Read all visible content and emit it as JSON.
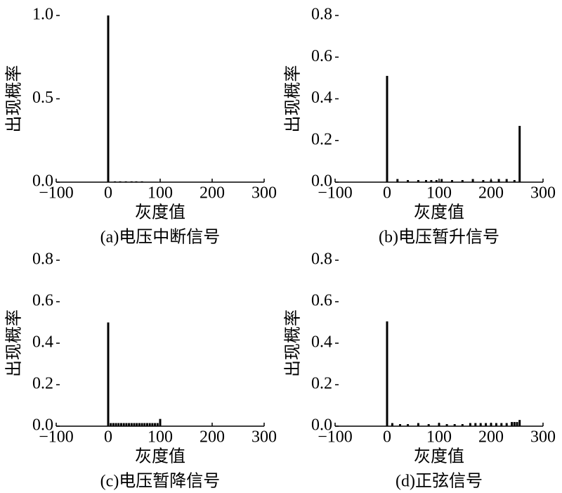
{
  "chart_data": [
    {
      "type": "bar",
      "xlabel": "灰度值",
      "ylabel": "出现概率",
      "caption": "(a)电压中断信号",
      "color": "#000000",
      "x": [
        0,
        13,
        23,
        34,
        45,
        54,
        65
      ],
      "values": [
        1.0,
        0.005,
        0.005,
        0.005,
        0.005,
        0.005,
        0.005
      ],
      "xlim": [
        -100,
        300
      ],
      "ylim": [
        0,
        1.0
      ],
      "xticks": [
        {
          "value": -100,
          "label": "−100"
        },
        0,
        100,
        200,
        300
      ],
      "yticks": [
        {
          "value": 0,
          "label": "0.0"
        },
        0.5,
        {
          "value": 1,
          "label": "1.0"
        }
      ]
    },
    {
      "type": "bar",
      "xlabel": "灰度值",
      "ylabel": "出现概率",
      "caption": "(b)电压暂升信号",
      "color": "#000000",
      "x": [
        0,
        20,
        40,
        60,
        75,
        85,
        95,
        105,
        125,
        145,
        165,
        185,
        200,
        215,
        230,
        245,
        255
      ],
      "values": [
        0.51,
        0.015,
        0.01,
        0.01,
        0.01,
        0.01,
        0.01,
        0.015,
        0.01,
        0.01,
        0.015,
        0.01,
        0.01,
        0.015,
        0.015,
        0.01,
        0.27
      ],
      "xlim": [
        -100,
        300
      ],
      "ylim": [
        0,
        0.8
      ],
      "xticks": [
        {
          "value": -100,
          "label": "−100"
        },
        0,
        100,
        200,
        300
      ],
      "yticks": [
        {
          "value": 0,
          "label": "0.0"
        },
        0.2,
        0.4,
        0.6,
        0.8
      ]
    },
    {
      "type": "bar",
      "xlabel": "灰度值",
      "ylabel": "出现概率",
      "caption": "(c)电压暂降信号",
      "color": "#000000",
      "x": [
        0,
        5,
        10,
        15,
        20,
        25,
        30,
        35,
        40,
        45,
        50,
        55,
        60,
        65,
        70,
        75,
        80,
        85,
        90,
        95,
        100
      ],
      "values": [
        0.5,
        0.015,
        0.015,
        0.015,
        0.015,
        0.015,
        0.015,
        0.015,
        0.015,
        0.015,
        0.015,
        0.015,
        0.015,
        0.015,
        0.015,
        0.015,
        0.015,
        0.015,
        0.015,
        0.015,
        0.035
      ],
      "xlim": [
        -100,
        300
      ],
      "ylim": [
        0,
        0.8
      ],
      "xticks": [
        {
          "value": -100,
          "label": "−100"
        },
        0,
        100,
        200,
        300
      ],
      "yticks": [
        {
          "value": 0,
          "label": "0.0"
        },
        0.2,
        0.4,
        0.6,
        0.8
      ]
    },
    {
      "type": "bar",
      "xlabel": "灰度值",
      "ylabel": "出现概率",
      "caption": "(d)正弦信号",
      "color": "#000000",
      "x": [
        0,
        10,
        25,
        40,
        60,
        80,
        100,
        115,
        130,
        145,
        160,
        170,
        180,
        190,
        200,
        210,
        220,
        230,
        240,
        245,
        250,
        255
      ],
      "values": [
        0.505,
        0.015,
        0.01,
        0.01,
        0.015,
        0.01,
        0.015,
        0.01,
        0.01,
        0.01,
        0.015,
        0.015,
        0.015,
        0.015,
        0.015,
        0.015,
        0.015,
        0.015,
        0.02,
        0.02,
        0.02,
        0.03
      ],
      "xlim": [
        -100,
        300
      ],
      "ylim": [
        0,
        0.8
      ],
      "xticks": [
        {
          "value": -100,
          "label": "−100"
        },
        0,
        100,
        200,
        300
      ],
      "yticks": [
        {
          "value": 0,
          "label": "0.0"
        },
        0.2,
        0.4,
        0.6,
        0.8
      ]
    }
  ]
}
